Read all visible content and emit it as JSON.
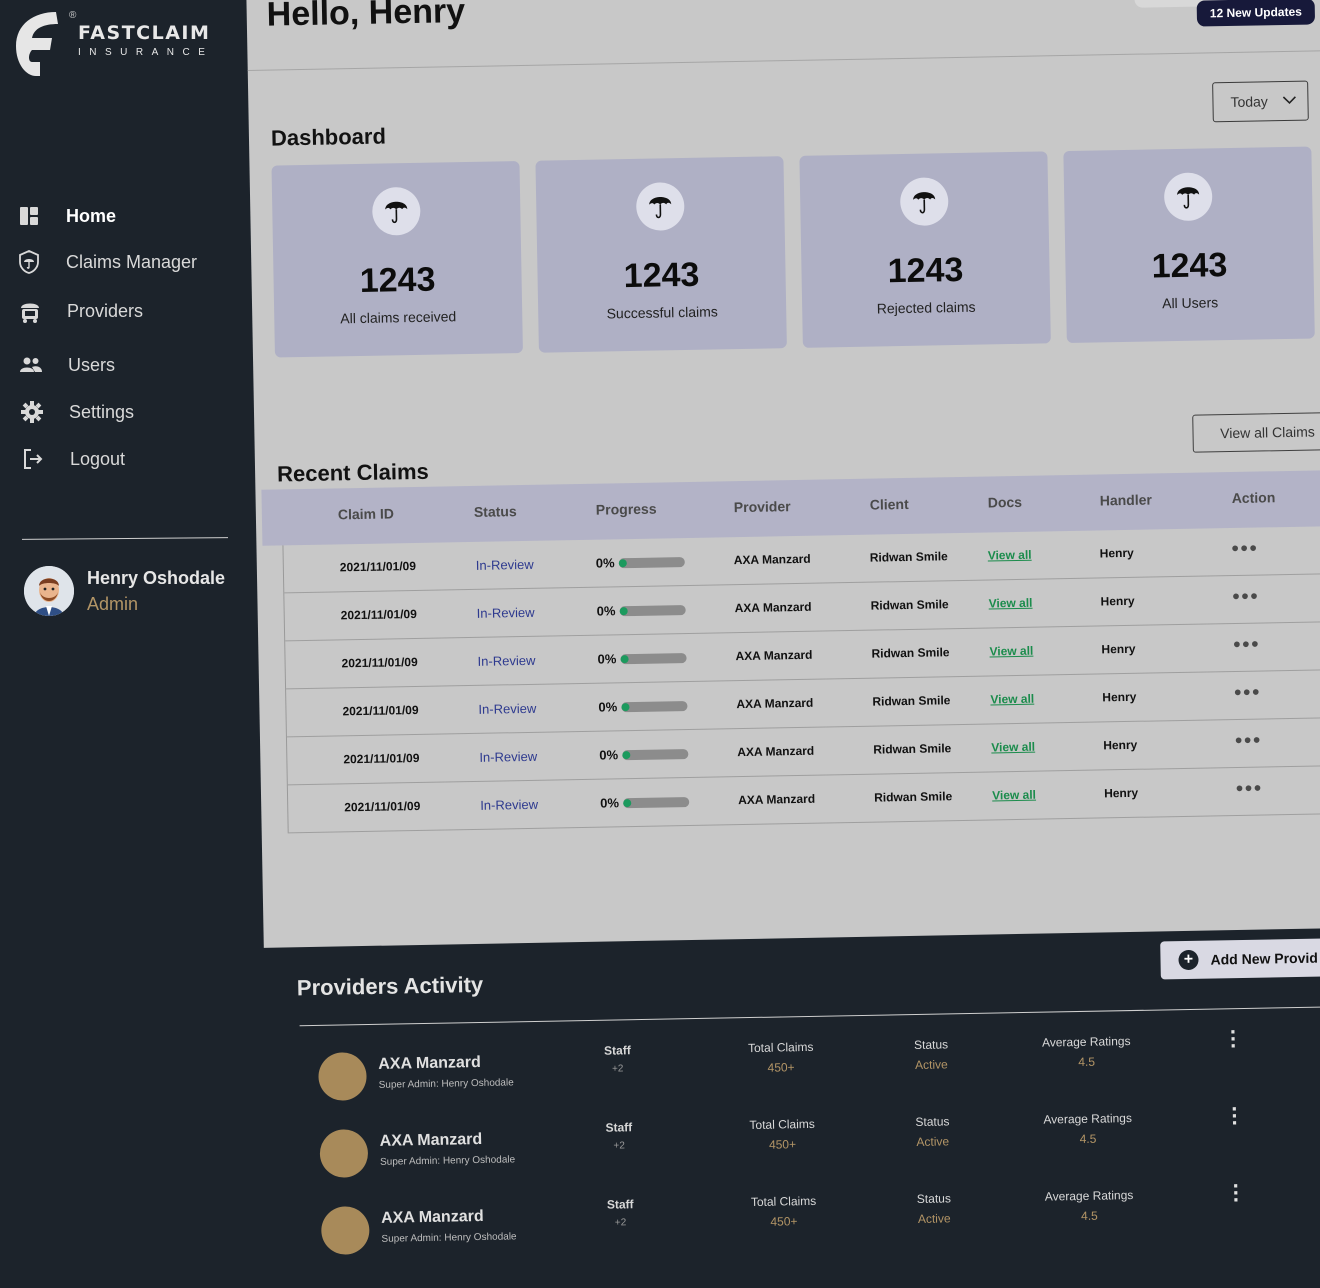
{
  "brand": {
    "name": "FASTCLAIM",
    "sub": "INSURANCE",
    "reg": "®"
  },
  "nav": [
    {
      "label": "Home",
      "icon": "dashboard-icon",
      "active": true
    },
    {
      "label": "Claims Manager",
      "icon": "shield-umbrella-icon"
    },
    {
      "label": "Providers",
      "icon": "provider-icon"
    },
    {
      "label": "Users",
      "icon": "users-icon"
    },
    {
      "label": "Settings",
      "icon": "gear-icon"
    },
    {
      "label": "Logout",
      "icon": "logout-icon"
    }
  ],
  "profile": {
    "name": "Henry Oshodale",
    "role": "Admin"
  },
  "header": {
    "greeting": "Hello, Henry",
    "updates": "12 New Updates"
  },
  "dashboard": {
    "title": "Dashboard",
    "filter": "Today",
    "cards": [
      {
        "value": "1243",
        "label": "All claims received"
      },
      {
        "value": "1243",
        "label": "Successful claims"
      },
      {
        "value": "1243",
        "label": "Rejected claims"
      },
      {
        "value": "1243",
        "label": "All Users"
      }
    ]
  },
  "recent": {
    "title": "Recent Claims",
    "view_all": "View all Claims",
    "columns": [
      "Claim ID",
      "Status",
      "Progress",
      "Provider",
      "Client",
      "Docs",
      "Handler",
      "Action"
    ],
    "rows": [
      {
        "id": "2021/11/01/09",
        "status": "In-Review",
        "progress": "0%",
        "provider": "AXA Manzard",
        "client": "Ridwan Smile",
        "docs": "View all",
        "handler": "Henry",
        "action": "•••"
      },
      {
        "id": "2021/11/01/09",
        "status": "In-Review",
        "progress": "0%",
        "provider": "AXA Manzard",
        "client": "Ridwan Smile",
        "docs": "View all",
        "handler": "Henry",
        "action": "•••"
      },
      {
        "id": "2021/11/01/09",
        "status": "In-Review",
        "progress": "0%",
        "provider": "AXA Manzard",
        "client": "Ridwan Smile",
        "docs": "View all",
        "handler": "Henry",
        "action": "•••"
      },
      {
        "id": "2021/11/01/09",
        "status": "In-Review",
        "progress": "0%",
        "provider": "AXA Manzard",
        "client": "Ridwan Smile",
        "docs": "View all",
        "handler": "Henry",
        "action": "•••"
      },
      {
        "id": "2021/11/01/09",
        "status": "In-Review",
        "progress": "0%",
        "provider": "AXA Manzard",
        "client": "Ridwan Smile",
        "docs": "View all",
        "handler": "Henry",
        "action": "•••"
      },
      {
        "id": "2021/11/01/09",
        "status": "In-Review",
        "progress": "0%",
        "provider": "AXA Manzard",
        "client": "Ridwan Smile",
        "docs": "View all",
        "handler": "Henry",
        "action": "•••"
      }
    ]
  },
  "providers": {
    "title": "Providers Activity",
    "add_button": "Add New Provid",
    "rows": [
      {
        "name": "AXA Manzard",
        "sub": "Super Admin: Henry Oshodale",
        "staff_label": "Staff",
        "staff": "+2",
        "claims_label": "Total Claims",
        "claims": "450+",
        "status_label": "Status",
        "status": "Active",
        "rating_label": "Average Ratings",
        "rating": "4.5"
      },
      {
        "name": "AXA Manzard",
        "sub": "Super Admin: Henry Oshodale",
        "staff_label": "Staff",
        "staff": "+2",
        "claims_label": "Total Claims",
        "claims": "450+",
        "status_label": "Status",
        "status": "Active",
        "rating_label": "Average Ratings",
        "rating": "4.5"
      },
      {
        "name": "AXA Manzard",
        "sub": "Super Admin: Henry Oshodale",
        "staff_label": "Staff",
        "staff": "+2",
        "claims_label": "Total Claims",
        "claims": "450+",
        "status_label": "Status",
        "status": "Active",
        "rating_label": "Average Ratings",
        "rating": "4.5"
      }
    ]
  },
  "colors": {
    "sidebar": "#1c232b",
    "card": "#afb0c5",
    "accent_gold": "#b39566",
    "status_blue": "#2e3a8f",
    "docs_green": "#1b8c4c",
    "badge": "#17193a"
  }
}
